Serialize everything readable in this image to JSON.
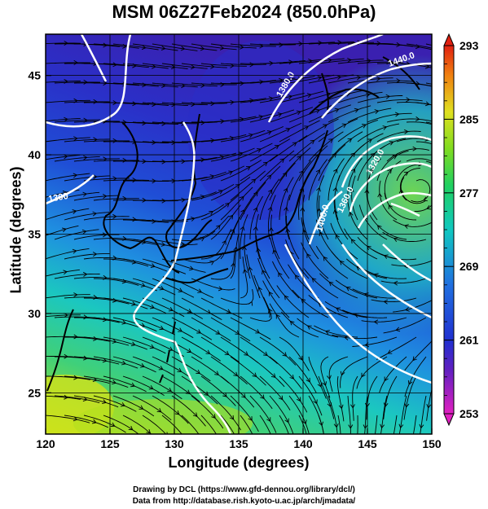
{
  "title": "MSM 06Z27Feb2024 (850.0hPa)",
  "xaxis": {
    "label": "Longitude (degrees)",
    "ticks": [
      120,
      125,
      130,
      135,
      140,
      145,
      150
    ],
    "range": [
      120,
      150
    ]
  },
  "yaxis": {
    "label": "Latitude  (degrees)",
    "ticks": [
      25,
      30,
      35,
      40,
      45
    ],
    "range": [
      22.4,
      47.6
    ]
  },
  "colorbar": {
    "min": 253,
    "max": 293,
    "ticks": [
      253,
      261,
      269,
      277,
      285,
      293
    ]
  },
  "contour_labels": [
    "1380.0",
    "1440.0",
    "1320.0",
    "1360.0",
    "1400.0",
    "1300"
  ],
  "credits": {
    "line1": "Drawing by DCL (https://www.gfd-dennou.org/library/dcl/)",
    "line2": "Data from http://database.rish.kyoto-u.ac.jp/arch/jmadata/"
  },
  "colors": {
    "cold": "#1f3fd6",
    "mid": "#19c9b4",
    "warm": "#c8e01a",
    "contour": "#ffffff"
  }
}
